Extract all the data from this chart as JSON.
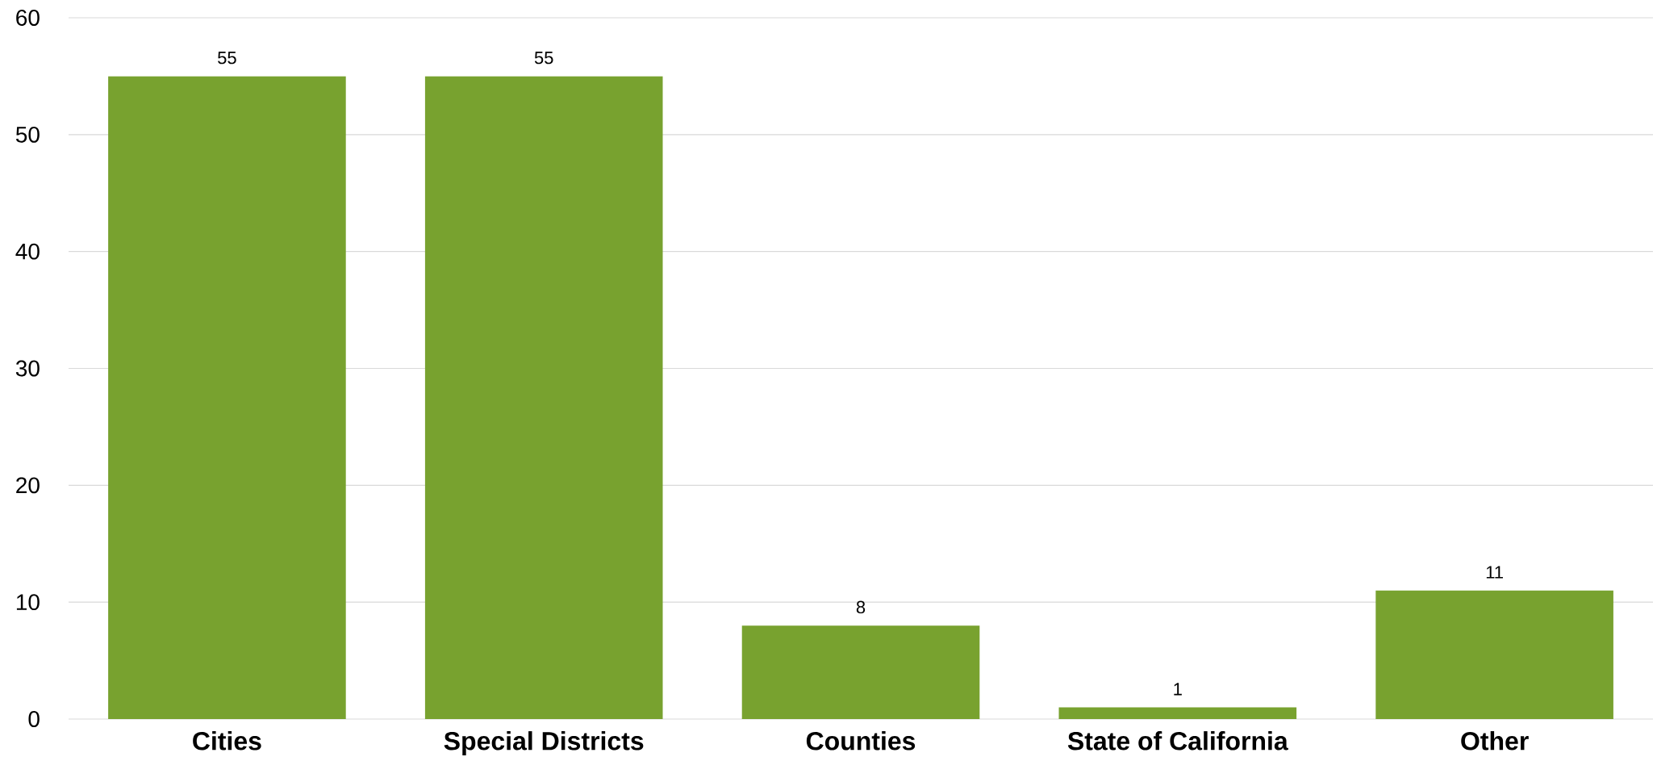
{
  "chart_data": {
    "type": "bar",
    "categories": [
      "Cities",
      "Special Districts",
      "Counties",
      "State of California",
      "Other"
    ],
    "values": [
      55,
      55,
      8,
      1,
      11
    ],
    "color": "#78a22f",
    "ylim": [
      0,
      60
    ],
    "yticks": [
      0,
      10,
      20,
      30,
      40,
      50,
      60
    ],
    "grid": "y",
    "data_labels": true
  }
}
